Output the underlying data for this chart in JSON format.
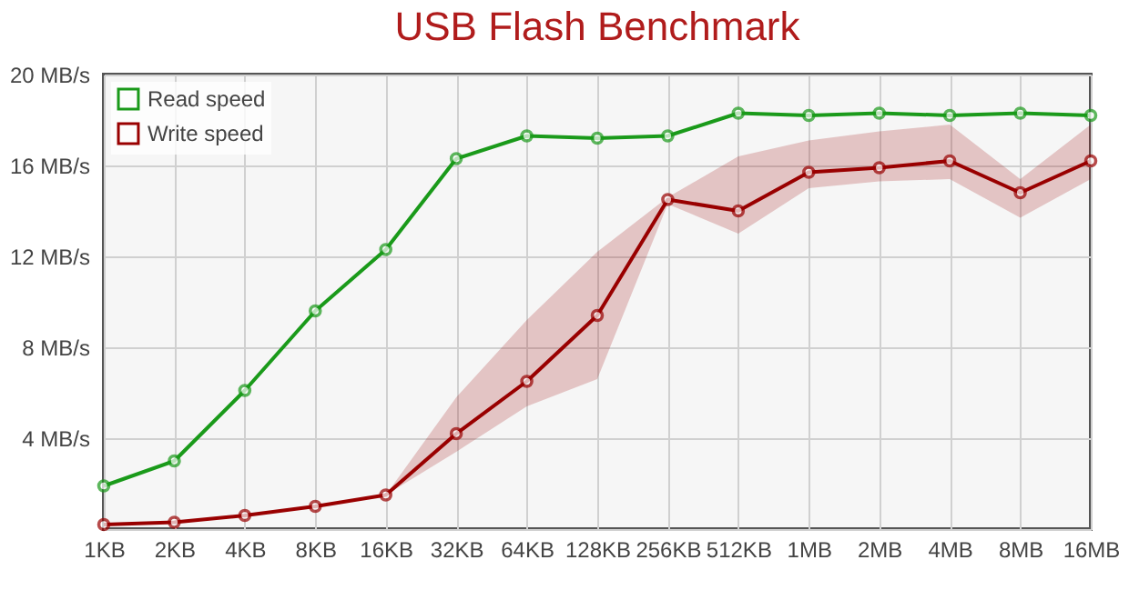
{
  "chart_data": {
    "type": "line",
    "title": "USB Flash Benchmark",
    "categories": [
      "1KB",
      "2KB",
      "4KB",
      "8KB",
      "16KB",
      "32KB",
      "64KB",
      "128KB",
      "256KB",
      "512KB",
      "1MB",
      "2MB",
      "4MB",
      "8MB",
      "16MB"
    ],
    "series": [
      {
        "name": "Read speed",
        "color": "#1a9a1a",
        "values": [
          1.9,
          3.0,
          6.1,
          9.6,
          12.3,
          16.3,
          17.3,
          17.2,
          17.3,
          18.3,
          18.2,
          18.3,
          18.2,
          18.3,
          18.2
        ]
      },
      {
        "name": "Write speed",
        "color": "#990000",
        "values": [
          0.2,
          0.3,
          0.6,
          1.0,
          1.5,
          4.2,
          6.5,
          9.4,
          14.5,
          14.0,
          15.7,
          15.9,
          16.2,
          14.8,
          16.2
        ],
        "lower": [
          0.2,
          0.3,
          0.6,
          1.0,
          1.5,
          3.4,
          5.4,
          6.6,
          14.3,
          13.0,
          15.0,
          15.3,
          15.4,
          13.7,
          15.4
        ],
        "upper": [
          0.2,
          0.3,
          0.6,
          1.0,
          1.5,
          5.8,
          9.2,
          12.2,
          14.6,
          16.4,
          17.1,
          17.5,
          17.8,
          15.4,
          17.8
        ]
      }
    ],
    "ylim": [
      0,
      20
    ],
    "yticks": [
      {
        "value": 0,
        "label": null
      },
      {
        "value": 4,
        "label": "4 MB/s"
      },
      {
        "value": 8,
        "label": "8 MB/s"
      },
      {
        "value": 12,
        "label": "12 MB/s"
      },
      {
        "value": 16,
        "label": "16 MB/s"
      },
      {
        "value": 20,
        "label": "20 MB/s"
      }
    ],
    "grid": true,
    "legend": "top left",
    "marker": "circle",
    "line_style": "solid"
  }
}
